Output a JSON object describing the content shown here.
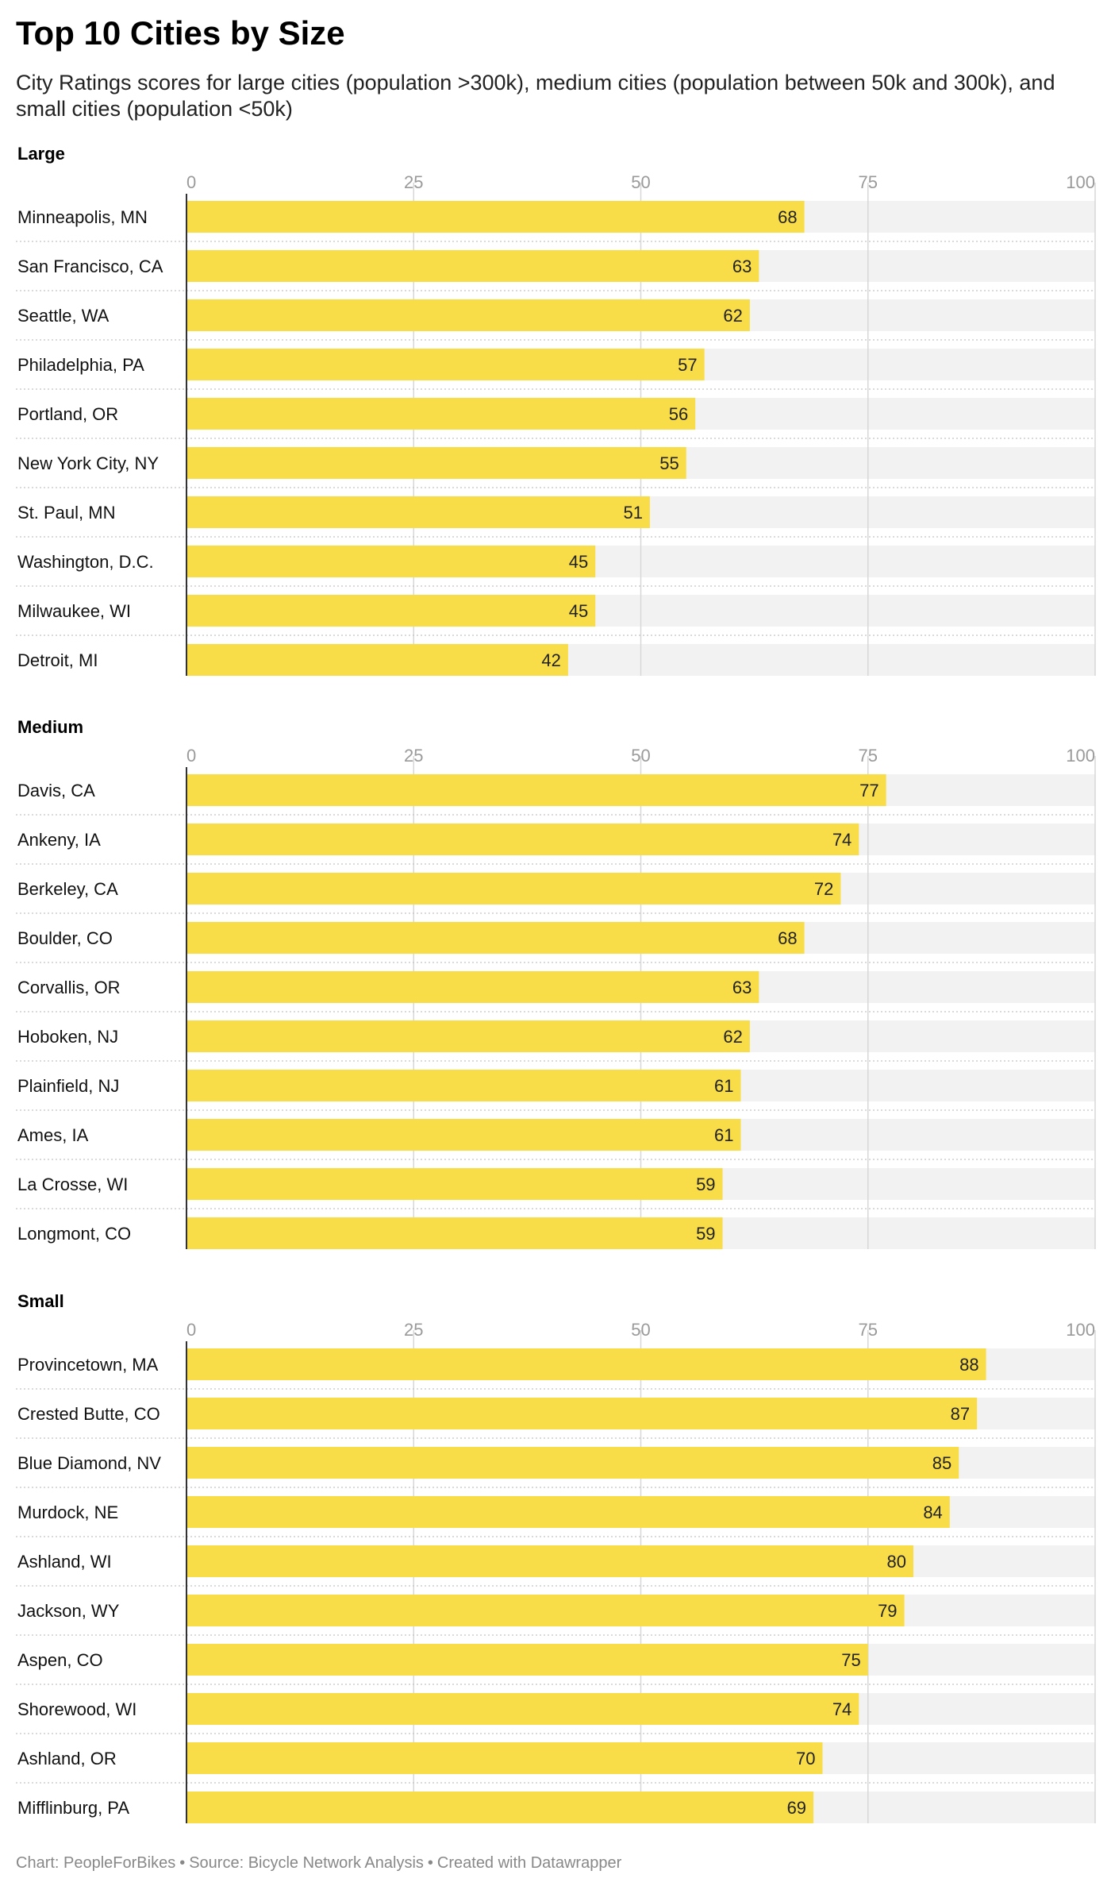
{
  "title": "Top 10 Cities by Size",
  "subtitle": "City Ratings scores for large cities (population >300k), medium cities (population between 50k and 300k), and small cities (population <50k)",
  "footer": {
    "chart": "Chart: PeopleForBikes",
    "source": "Source: Bicycle Network Analysis",
    "created": "Created with Datawrapper",
    "separator": "•"
  },
  "colors": {
    "bar": "#f8dd48",
    "track": "#f2f2f2",
    "grid": "#d7d7d7",
    "tick_text": "#9a9a9a",
    "axis": "#333333"
  },
  "chart_data": [
    {
      "type": "bar",
      "orientation": "horizontal",
      "panel_title": "Large",
      "xlim": [
        0,
        100
      ],
      "ticks": [
        0,
        25,
        50,
        75,
        100
      ],
      "categories": [
        "Minneapolis, MN",
        "San Francisco, CA",
        "Seattle, WA",
        "Philadelphia, PA",
        "Portland, OR",
        "New York City, NY",
        "St. Paul, MN",
        "Washington, D.C.",
        "Milwaukee, WI",
        "Detroit, MI"
      ],
      "values": [
        68,
        63,
        62,
        57,
        56,
        55,
        51,
        45,
        45,
        42
      ]
    },
    {
      "type": "bar",
      "orientation": "horizontal",
      "panel_title": "Medium",
      "xlim": [
        0,
        100
      ],
      "ticks": [
        0,
        25,
        50,
        75,
        100
      ],
      "categories": [
        "Davis, CA",
        "Ankeny, IA",
        "Berkeley, CA",
        "Boulder, CO",
        "Corvallis, OR",
        "Hoboken, NJ",
        "Plainfield, NJ",
        "Ames, IA",
        "La Crosse, WI",
        "Longmont, CO"
      ],
      "values": [
        77,
        74,
        72,
        68,
        63,
        62,
        61,
        61,
        59,
        59
      ]
    },
    {
      "type": "bar",
      "orientation": "horizontal",
      "panel_title": "Small",
      "xlim": [
        0,
        100
      ],
      "ticks": [
        0,
        25,
        50,
        75,
        100
      ],
      "categories": [
        "Provincetown, MA",
        "Crested Butte, CO",
        "Blue Diamond, NV",
        "Murdock, NE",
        "Ashland, WI",
        "Jackson, WY",
        "Aspen, CO",
        "Shorewood, WI",
        "Ashland, OR",
        "Mifflinburg, PA"
      ],
      "values": [
        88,
        87,
        85,
        84,
        80,
        79,
        75,
        74,
        70,
        69
      ]
    }
  ]
}
